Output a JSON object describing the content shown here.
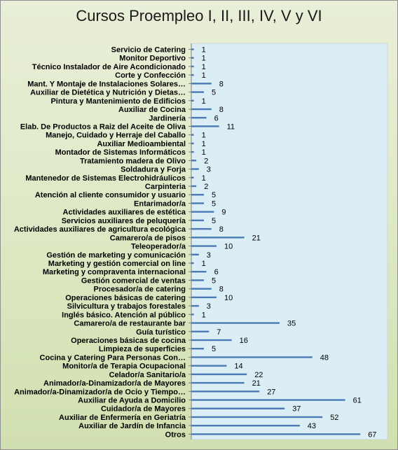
{
  "chart_data": {
    "type": "bar",
    "orientation": "horizontal",
    "title": "Cursos Proempleo I, II, III, IV, V y VI",
    "categories": [
      "Servicio de Catering",
      "Monitor Deportivo",
      "Técnico Instalador de Aire Acondicionado",
      "Corte y Confección",
      "Mant. Y Montaje de Instalaciones Solares…",
      "Auxiliar de Dietética y Nutrición y Dietas…",
      "Pintura y Mantenimiento de Edificios",
      "Auxiliar de Cocina",
      "Jardinería",
      "Elab. De Productos a Raiz del Aceite de Oliva",
      "Manejo, Cuidado y Herraje del Caballo",
      "Auxiliar Medioambiental",
      "Montador de Sistemas Informáticos",
      "Tratamiento madera de Olivo",
      "Soldadura y Forja",
      "Mantenedor de Sistemas Electrohidráulicos",
      "Carpinteria",
      "Atención al cliente consumidor y usuario",
      "Entarimador/a",
      "Actividades auxiliares de estética",
      "Servicios auxiliares de peluquería",
      "Actividades auxiliares de agricultura ecológica",
      "Camarero/a de pisos",
      "Teleoperador/a",
      "Gestión de marketing y comunicación",
      "Marketing y gestión comercial  on line",
      "Marketing y compraventa internacional",
      "Gestión comercial de ventas",
      "Procesador/a de catering",
      "Operaciones básicas de catering",
      "Silvicultura y trabajos forestales",
      "Inglés básico. Atención al público",
      "Camarero/a de restaurante bar",
      "Guía turístico",
      "Operaciones básicas de cocina",
      "Limpieza de superficies",
      "Cocina y Catering Para Personas Con…",
      "Monitor/a de Terapia Ocupacional",
      "Celador/a Sanitario/a",
      "Animador/a-Dinamizador/a de Mayores",
      "Animador/a-Dinamizador/a de Ocio y Tiempo…",
      "Auxiliar de Ayuda a Domicilio",
      "Cuidador/a de Mayores",
      "Auxiliar de Enfermería en Geriatría",
      "Auxiliar de Jardín de Infancia",
      "Otros"
    ],
    "values": [
      1,
      1,
      1,
      1,
      8,
      5,
      1,
      8,
      6,
      11,
      1,
      1,
      1,
      2,
      3,
      1,
      2,
      5,
      5,
      9,
      5,
      8,
      21,
      10,
      3,
      1,
      6,
      5,
      8,
      10,
      3,
      1,
      35,
      7,
      16,
      5,
      48,
      14,
      22,
      21,
      27,
      61,
      37,
      52,
      43,
      67
    ],
    "xlim": [
      0,
      70
    ],
    "grid": false,
    "legend": "none",
    "colors": {
      "bar": "#4a7ab5",
      "plot_area": "#dceef5",
      "chart_area": "#e3ebcc"
    }
  }
}
